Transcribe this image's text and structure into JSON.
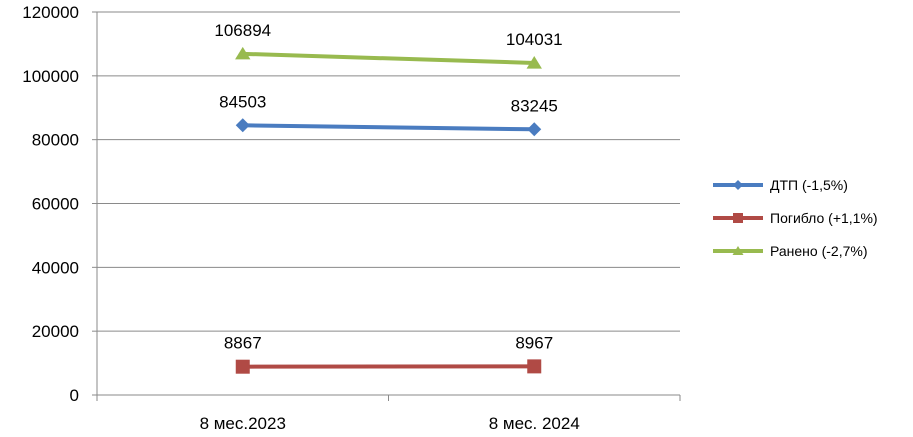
{
  "chart_data": {
    "type": "line",
    "categories": [
      "8 мес.2023",
      "8 мес. 2024"
    ],
    "series": [
      {
        "name": "ДТП (-1,5%)",
        "values": [
          84503,
          83245
        ],
        "color": "#4a7cc0",
        "marker": "diamond"
      },
      {
        "name": "Погибло (+1,1%)",
        "values": [
          8867,
          8967
        ],
        "color": "#b04a45",
        "marker": "square"
      },
      {
        "name": "Ранено (-2,7%)",
        "values": [
          106894,
          104031
        ],
        "color": "#98ba4f",
        "marker": "triangle"
      }
    ],
    "data_labels": true,
    "ylim": [
      0,
      120000
    ],
    "yticks": [
      0,
      20000,
      40000,
      60000,
      80000,
      100000,
      120000
    ],
    "grid": true,
    "legend": "right",
    "title": "",
    "xlabel": "",
    "ylabel": ""
  }
}
